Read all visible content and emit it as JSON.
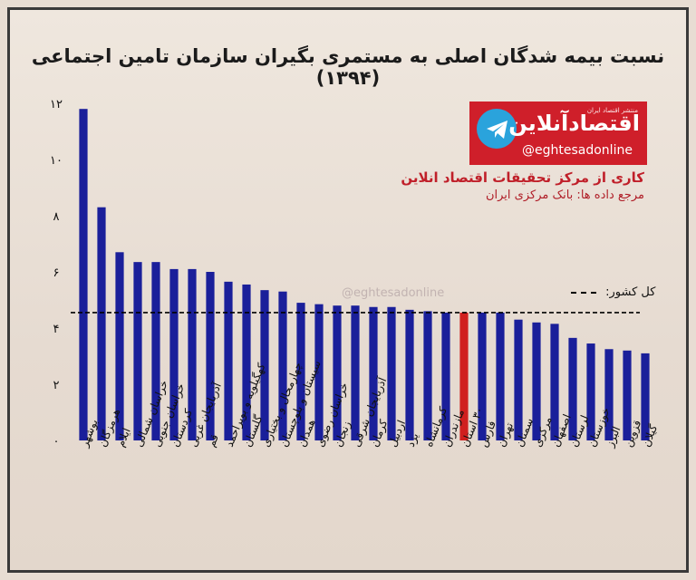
{
  "title": "نسبت بیمه شدگان اصلی به مستمری بگیران سازمان تامین اجتماعی (۱۳۹۴)",
  "brand": {
    "logo_text": "اقتصادآنلاین",
    "logo_sub": "منتشر اقتصاد ایران",
    "handle": "@eghtesadonline",
    "icon": "telegram-icon",
    "color": "#cf1f2a"
  },
  "credit": {
    "line1": "کاری از مرکز تحقیقات اقتصاد انلاین",
    "line2": "مرجع داده ها: بانک مرکزی ایران"
  },
  "watermark": "@eghtesadonline",
  "legend": {
    "label": "کل کشور:"
  },
  "chart_data": {
    "type": "bar",
    "ylim": [
      0,
      12
    ],
    "yticks": [
      "۰",
      "۲",
      "۴",
      "۶",
      "۸",
      "۱۰",
      "۱۲"
    ],
    "ytick_values": [
      0,
      2,
      4,
      6,
      8,
      10,
      12
    ],
    "reference_line": {
      "label": "کل کشور:",
      "value": 4.55
    },
    "bar_color": "#1a1f9a",
    "highlight_color": "#d0201f",
    "highlight_category": "۳۰ استان",
    "categories": [
      "بوشهر",
      "هرمزگان",
      "ایلام",
      "خراسان شمالی",
      "خراسان جنوبی",
      "کردستان",
      "آذربایجان غربی",
      "قم",
      "کهگیلویه و بویراحمد",
      "گلستان",
      "چهارمحال و بختیاری",
      "سیستان و بلوچستان",
      "همدان",
      "خراسان رضوی",
      "زنجان",
      "آذربایجان شرقی",
      "کرمان",
      "اردبیل",
      "یزد",
      "کرمانشاه",
      "مازندران",
      "۳۰ استان",
      "فارس",
      "تهران",
      "سمنان",
      "مرکزی",
      "اصفهان",
      "لرستان",
      "خوزستان",
      "البرز",
      "قزوین",
      "گیلان"
    ],
    "values": [
      11.8,
      8.3,
      6.7,
      6.35,
      6.35,
      6.1,
      6.1,
      6.0,
      5.65,
      5.55,
      5.35,
      5.3,
      4.9,
      4.85,
      4.8,
      4.8,
      4.75,
      4.75,
      4.65,
      4.6,
      4.55,
      4.55,
      4.55,
      4.55,
      4.3,
      4.2,
      4.15,
      3.65,
      3.45,
      3.25,
      3.2,
      3.1
    ]
  }
}
